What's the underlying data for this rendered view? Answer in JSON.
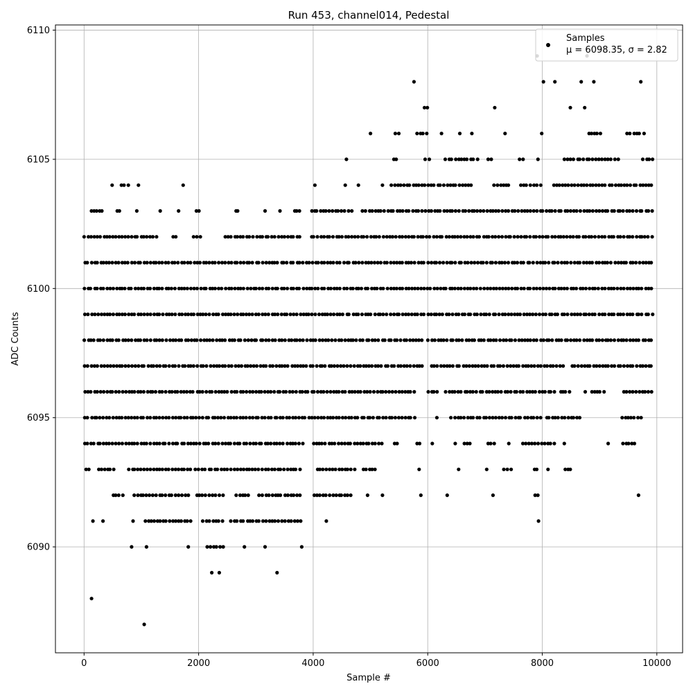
{
  "chart_data": {
    "type": "scatter",
    "title": "Run 453, channel014, Pedestal",
    "xlabel": "Sample #",
    "ylabel": "ADC Counts",
    "xlim": [
      -500,
      10450
    ],
    "ylim": [
      6085.9,
      6110.2
    ],
    "xticks": [
      0,
      2000,
      4000,
      6000,
      8000,
      10000
    ],
    "yticks": [
      6090,
      6095,
      6100,
      6105,
      6110
    ],
    "xtick_labels": [
      "0",
      "2000",
      "4000",
      "6000",
      "8000",
      "10000"
    ],
    "ytick_labels": [
      "6090",
      "6095",
      "6100",
      "6105",
      "6110"
    ],
    "grid": true,
    "legend_position": "top-right",
    "marker_color": "#000000",
    "sample_count": 10000,
    "series": [
      {
        "name": "Samples",
        "stats_label": "μ = 6098.35, σ = 2.82",
        "levels": [
          {
            "y": 6087,
            "segments": [
              [
                1050,
                1050
              ]
            ]
          },
          {
            "y": 6088,
            "segments": [
              [
                130,
                130
              ]
            ]
          },
          {
            "y": 6089,
            "segments": [
              [
                2230,
                2230
              ],
              [
                2360,
                2360
              ],
              [
                3370,
                3370
              ]
            ]
          },
          {
            "y": 6090,
            "segments": [
              [
                830,
                830
              ],
              [
                1050,
                1130
              ],
              [
                1820,
                1820
              ],
              [
                2140,
                2450
              ],
              [
                2800,
                2800
              ],
              [
                3160,
                3160
              ],
              [
                3800,
                3800
              ]
            ]
          },
          {
            "y": 6091,
            "segments": [
              [
                140,
                170
              ],
              [
                330,
                330
              ],
              [
                830,
                880
              ],
              [
                1050,
                1900
              ],
              [
                2060,
                2450
              ],
              [
                2550,
                3820
              ],
              [
                4210,
                4250
              ],
              [
                7910,
                7960
              ]
            ]
          },
          {
            "y": 6092,
            "segments": [
              [
                500,
                700
              ],
              [
                860,
                1850
              ],
              [
                1940,
                2450
              ],
              [
                2650,
                2900
              ],
              [
                3050,
                3800
              ],
              [
                4000,
                4700
              ],
              [
                4950,
                4950
              ],
              [
                5210,
                5210
              ],
              [
                5880,
                5880
              ],
              [
                6340,
                6340
              ],
              [
                7140,
                7140
              ],
              [
                7850,
                7950
              ],
              [
                9680,
                9680
              ]
            ]
          },
          {
            "y": 6093,
            "segments": [
              [
                20,
                130
              ],
              [
                240,
                550
              ],
              [
                770,
                1900
              ],
              [
                1940,
                3800
              ],
              [
                4050,
                4750
              ],
              [
                4850,
                5120
              ],
              [
                5850,
                5850
              ],
              [
                6540,
                6540
              ],
              [
                7030,
                7030
              ],
              [
                7320,
                7500
              ],
              [
                7850,
                7950
              ],
              [
                8100,
                8100
              ],
              [
                8380,
                8520
              ]
            ]
          },
          {
            "y": 6094,
            "segments": [
              [
                0,
                3850
              ],
              [
                3980,
                5240
              ],
              [
                5400,
                5500
              ],
              [
                5800,
                5900
              ],
              [
                6080,
                6080
              ],
              [
                6480,
                6480
              ],
              [
                6640,
                6780
              ],
              [
                7030,
                7200
              ],
              [
                7380,
                7450
              ],
              [
                7650,
                8250
              ],
              [
                8350,
                8420
              ],
              [
                9150,
                9150
              ],
              [
                9400,
                9650
              ]
            ]
          },
          {
            "y": 6095,
            "segments": [
              [
                0,
                5800
              ],
              [
                6120,
                6200
              ],
              [
                6400,
                8000
              ],
              [
                8050,
                8700
              ],
              [
                9380,
                9750
              ]
            ]
          },
          {
            "y": 6096,
            "segments": [
              [
                0,
                5800
              ],
              [
                6000,
                6200
              ],
              [
                6300,
                8250
              ],
              [
                8300,
                8500
              ],
              [
                8750,
                8750
              ],
              [
                8850,
                9100
              ],
              [
                9400,
                9950
              ]
            ]
          },
          {
            "y": 6097,
            "segments": [
              [
                0,
                5950
              ],
              [
                6050,
                8400
              ],
              [
                8500,
                9950
              ]
            ]
          },
          {
            "y": 6098,
            "segments": [
              [
                0,
                5950
              ],
              [
                6000,
                9950
              ]
            ]
          },
          {
            "y": 6099,
            "segments": [
              [
                0,
                9950
              ]
            ]
          },
          {
            "y": 6100,
            "segments": [
              [
                0,
                9950
              ]
            ]
          },
          {
            "y": 6101,
            "segments": [
              [
                0,
                9950
              ]
            ]
          },
          {
            "y": 6102,
            "segments": [
              [
                0,
                1300
              ],
              [
                1550,
                1650
              ],
              [
                1900,
                2050
              ],
              [
                2450,
                3800
              ],
              [
                3950,
                9950
              ]
            ]
          },
          {
            "y": 6103,
            "segments": [
              [
                100,
                350
              ],
              [
                550,
                650
              ],
              [
                920,
                920
              ],
              [
                1330,
                1330
              ],
              [
                1650,
                1650
              ],
              [
                1950,
                2050
              ],
              [
                2620,
                2740
              ],
              [
                3120,
                3200
              ],
              [
                3420,
                3420
              ],
              [
                3650,
                3800
              ],
              [
                3950,
                4700
              ],
              [
                4850,
                9950
              ]
            ]
          },
          {
            "y": 6104,
            "segments": [
              [
                490,
                490
              ],
              [
                620,
                800
              ],
              [
                950,
                950
              ],
              [
                1730,
                1730
              ],
              [
                4000,
                4060
              ],
              [
                4560,
                4560
              ],
              [
                4790,
                4790
              ],
              [
                5210,
                5210
              ],
              [
                5350,
                6800
              ],
              [
                7150,
                7450
              ],
              [
                7600,
                8000
              ],
              [
                8180,
                9950
              ]
            ]
          },
          {
            "y": 6105,
            "segments": [
              [
                4580,
                4580
              ],
              [
                5390,
                5500
              ],
              [
                5950,
                6050
              ],
              [
                6300,
                6900
              ],
              [
                7030,
                7150
              ],
              [
                7600,
                7700
              ],
              [
                7900,
                7950
              ],
              [
                8380,
                9350
              ],
              [
                9750,
                9950
              ]
            ]
          },
          {
            "y": 6106,
            "segments": [
              [
                5000,
                5000
              ],
              [
                5430,
                5560
              ],
              [
                5810,
                6010
              ],
              [
                6240,
                6240
              ],
              [
                6560,
                6560
              ],
              [
                6770,
                6770
              ],
              [
                7350,
                7350
              ],
              [
                7990,
                7990
              ],
              [
                8800,
                9050
              ],
              [
                9470,
                9800
              ]
            ]
          },
          {
            "y": 6107,
            "segments": [
              [
                5930,
                6030
              ],
              [
                7170,
                7170
              ],
              [
                8490,
                8490
              ],
              [
                8740,
                8740
              ]
            ]
          },
          {
            "y": 6108,
            "segments": [
              [
                5760,
                5760
              ],
              [
                8020,
                8020
              ],
              [
                8220,
                8220
              ],
              [
                8680,
                8680
              ],
              [
                8900,
                8900
              ],
              [
                9720,
                9720
              ]
            ]
          },
          {
            "y": 6109,
            "segments": [
              [
                7910,
                7910
              ],
              [
                8780,
                8780
              ]
            ]
          }
        ]
      }
    ]
  }
}
